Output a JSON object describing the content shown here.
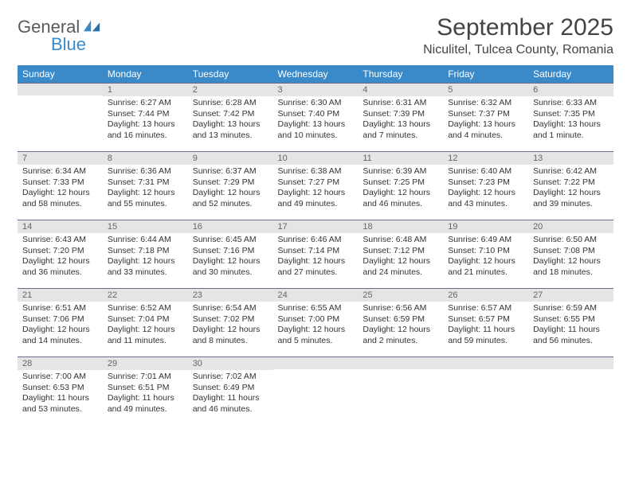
{
  "brand": {
    "part1": "General",
    "part2": "Blue"
  },
  "title": "September 2025",
  "location": "Niculitel, Tulcea County, Romania",
  "colors": {
    "header_bg": "#3a8ac9",
    "header_fg": "#ffffff",
    "daynum_bg": "#e5e5e5",
    "daynum_fg": "#666666",
    "page_bg": "#ffffff",
    "text": "#333333",
    "rule": "#6a6a8a"
  },
  "day_headers": [
    "Sunday",
    "Monday",
    "Tuesday",
    "Wednesday",
    "Thursday",
    "Friday",
    "Saturday"
  ],
  "weeks": [
    [
      {
        "n": "",
        "lines": []
      },
      {
        "n": "1",
        "lines": [
          "Sunrise: 6:27 AM",
          "Sunset: 7:44 PM",
          "Daylight: 13 hours and 16 minutes."
        ]
      },
      {
        "n": "2",
        "lines": [
          "Sunrise: 6:28 AM",
          "Sunset: 7:42 PM",
          "Daylight: 13 hours and 13 minutes."
        ]
      },
      {
        "n": "3",
        "lines": [
          "Sunrise: 6:30 AM",
          "Sunset: 7:40 PM",
          "Daylight: 13 hours and 10 minutes."
        ]
      },
      {
        "n": "4",
        "lines": [
          "Sunrise: 6:31 AM",
          "Sunset: 7:39 PM",
          "Daylight: 13 hours and 7 minutes."
        ]
      },
      {
        "n": "5",
        "lines": [
          "Sunrise: 6:32 AM",
          "Sunset: 7:37 PM",
          "Daylight: 13 hours and 4 minutes."
        ]
      },
      {
        "n": "6",
        "lines": [
          "Sunrise: 6:33 AM",
          "Sunset: 7:35 PM",
          "Daylight: 13 hours and 1 minute."
        ]
      }
    ],
    [
      {
        "n": "7",
        "lines": [
          "Sunrise: 6:34 AM",
          "Sunset: 7:33 PM",
          "Daylight: 12 hours and 58 minutes."
        ]
      },
      {
        "n": "8",
        "lines": [
          "Sunrise: 6:36 AM",
          "Sunset: 7:31 PM",
          "Daylight: 12 hours and 55 minutes."
        ]
      },
      {
        "n": "9",
        "lines": [
          "Sunrise: 6:37 AM",
          "Sunset: 7:29 PM",
          "Daylight: 12 hours and 52 minutes."
        ]
      },
      {
        "n": "10",
        "lines": [
          "Sunrise: 6:38 AM",
          "Sunset: 7:27 PM",
          "Daylight: 12 hours and 49 minutes."
        ]
      },
      {
        "n": "11",
        "lines": [
          "Sunrise: 6:39 AM",
          "Sunset: 7:25 PM",
          "Daylight: 12 hours and 46 minutes."
        ]
      },
      {
        "n": "12",
        "lines": [
          "Sunrise: 6:40 AM",
          "Sunset: 7:23 PM",
          "Daylight: 12 hours and 43 minutes."
        ]
      },
      {
        "n": "13",
        "lines": [
          "Sunrise: 6:42 AM",
          "Sunset: 7:22 PM",
          "Daylight: 12 hours and 39 minutes."
        ]
      }
    ],
    [
      {
        "n": "14",
        "lines": [
          "Sunrise: 6:43 AM",
          "Sunset: 7:20 PM",
          "Daylight: 12 hours and 36 minutes."
        ]
      },
      {
        "n": "15",
        "lines": [
          "Sunrise: 6:44 AM",
          "Sunset: 7:18 PM",
          "Daylight: 12 hours and 33 minutes."
        ]
      },
      {
        "n": "16",
        "lines": [
          "Sunrise: 6:45 AM",
          "Sunset: 7:16 PM",
          "Daylight: 12 hours and 30 minutes."
        ]
      },
      {
        "n": "17",
        "lines": [
          "Sunrise: 6:46 AM",
          "Sunset: 7:14 PM",
          "Daylight: 12 hours and 27 minutes."
        ]
      },
      {
        "n": "18",
        "lines": [
          "Sunrise: 6:48 AM",
          "Sunset: 7:12 PM",
          "Daylight: 12 hours and 24 minutes."
        ]
      },
      {
        "n": "19",
        "lines": [
          "Sunrise: 6:49 AM",
          "Sunset: 7:10 PM",
          "Daylight: 12 hours and 21 minutes."
        ]
      },
      {
        "n": "20",
        "lines": [
          "Sunrise: 6:50 AM",
          "Sunset: 7:08 PM",
          "Daylight: 12 hours and 18 minutes."
        ]
      }
    ],
    [
      {
        "n": "21",
        "lines": [
          "Sunrise: 6:51 AM",
          "Sunset: 7:06 PM",
          "Daylight: 12 hours and 14 minutes."
        ]
      },
      {
        "n": "22",
        "lines": [
          "Sunrise: 6:52 AM",
          "Sunset: 7:04 PM",
          "Daylight: 12 hours and 11 minutes."
        ]
      },
      {
        "n": "23",
        "lines": [
          "Sunrise: 6:54 AM",
          "Sunset: 7:02 PM",
          "Daylight: 12 hours and 8 minutes."
        ]
      },
      {
        "n": "24",
        "lines": [
          "Sunrise: 6:55 AM",
          "Sunset: 7:00 PM",
          "Daylight: 12 hours and 5 minutes."
        ]
      },
      {
        "n": "25",
        "lines": [
          "Sunrise: 6:56 AM",
          "Sunset: 6:59 PM",
          "Daylight: 12 hours and 2 minutes."
        ]
      },
      {
        "n": "26",
        "lines": [
          "Sunrise: 6:57 AM",
          "Sunset: 6:57 PM",
          "Daylight: 11 hours and 59 minutes."
        ]
      },
      {
        "n": "27",
        "lines": [
          "Sunrise: 6:59 AM",
          "Sunset: 6:55 PM",
          "Daylight: 11 hours and 56 minutes."
        ]
      }
    ],
    [
      {
        "n": "28",
        "lines": [
          "Sunrise: 7:00 AM",
          "Sunset: 6:53 PM",
          "Daylight: 11 hours and 53 minutes."
        ]
      },
      {
        "n": "29",
        "lines": [
          "Sunrise: 7:01 AM",
          "Sunset: 6:51 PM",
          "Daylight: 11 hours and 49 minutes."
        ]
      },
      {
        "n": "30",
        "lines": [
          "Sunrise: 7:02 AM",
          "Sunset: 6:49 PM",
          "Daylight: 11 hours and 46 minutes."
        ]
      },
      {
        "n": "",
        "lines": []
      },
      {
        "n": "",
        "lines": []
      },
      {
        "n": "",
        "lines": []
      },
      {
        "n": "",
        "lines": []
      }
    ]
  ]
}
